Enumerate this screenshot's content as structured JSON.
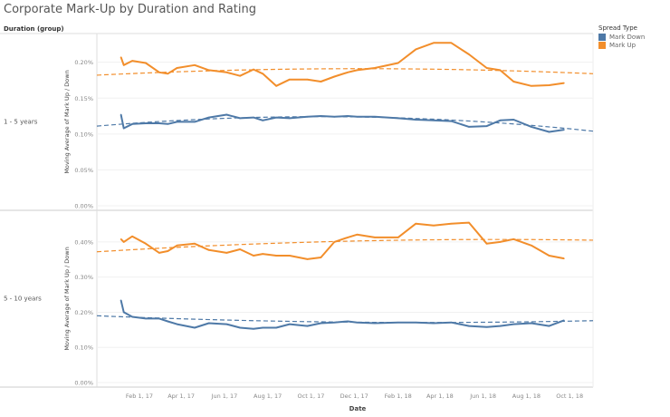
{
  "title": "Corporate Mark-Up by Duration and Rating",
  "row_header": "Duration (group)",
  "legend": {
    "title": "Spread Type",
    "items": [
      {
        "label": "Mark Down",
        "color": "#4e79a7"
      },
      {
        "label": "Mark Up",
        "color": "#f28e2b"
      }
    ]
  },
  "chart_data": {
    "type": "line",
    "xlabel": "Date",
    "ylabel": "Moving Average of Mark Up / Down",
    "x_ticks": [
      "Feb 1, 17",
      "Apr 1, 17",
      "Jun 1, 17",
      "Aug 1, 17",
      "Oct 1, 17",
      "Dec 1, 17",
      "Feb 1, 18",
      "Apr 1, 18",
      "Jun 1, 18",
      "Aug 1, 18",
      "Oct 1, 18"
    ],
    "x_tick_dates": [
      "2017-02-01",
      "2017-04-01",
      "2017-06-01",
      "2017-08-01",
      "2017-10-01",
      "2017-12-01",
      "2018-02-01",
      "2018-04-01",
      "2018-06-01",
      "2018-08-01",
      "2018-10-01"
    ],
    "xlim": [
      "2016-12-03",
      "2018-11-03"
    ],
    "grid": true,
    "legend_position": "right",
    "x": [
      "2017-01-06",
      "2017-01-10",
      "2017-01-22",
      "2017-02-10",
      "2017-03-01",
      "2017-03-13",
      "2017-03-26",
      "2017-04-20",
      "2017-05-10",
      "2017-06-04",
      "2017-06-23",
      "2017-07-12",
      "2017-07-25",
      "2017-08-13",
      "2017-09-01",
      "2017-09-26",
      "2017-10-15",
      "2017-11-03",
      "2017-11-22",
      "2017-12-05",
      "2017-12-30",
      "2018-02-01",
      "2018-02-26",
      "2018-03-23",
      "2018-04-17",
      "2018-05-12",
      "2018-06-06",
      "2018-06-25",
      "2018-07-14",
      "2018-08-08",
      "2018-09-02",
      "2018-09-23"
    ],
    "panels": [
      {
        "label": "1 - 5 years",
        "ylim": [
          0,
          0.24
        ],
        "y_ticks": [
          0,
          0.05,
          0.1,
          0.15,
          0.2
        ],
        "y_tick_labels": [
          "0.00%",
          "0.05%",
          "0.10%",
          "0.15%",
          "0.20%"
        ],
        "series": [
          {
            "name": "Mark Down",
            "color": "#4e79a7",
            "values": [
              0.127,
              0.108,
              0.114,
              0.115,
              0.115,
              0.114,
              0.117,
              0.117,
              0.123,
              0.127,
              0.122,
              0.123,
              0.119,
              0.123,
              0.122,
              0.124,
              0.125,
              0.124,
              0.125,
              0.124,
              0.124,
              0.122,
              0.12,
              0.119,
              0.118,
              0.11,
              0.111,
              0.119,
              0.12,
              0.11,
              0.103,
              0.106
            ],
            "trend": [
              0.111,
              0.124,
              0.104
            ]
          },
          {
            "name": "Mark Up",
            "color": "#f28e2b",
            "values": [
              0.207,
              0.196,
              0.202,
              0.199,
              0.186,
              0.184,
              0.192,
              0.196,
              0.189,
              0.186,
              0.181,
              0.19,
              0.184,
              0.167,
              0.176,
              0.176,
              0.173,
              0.18,
              0.186,
              0.189,
              0.192,
              0.199,
              0.218,
              0.227,
              0.227,
              0.211,
              0.192,
              0.189,
              0.173,
              0.167,
              0.168,
              0.171
            ],
            "trend": [
              0.182,
              0.191,
              0.184
            ]
          }
        ]
      },
      {
        "label": "5 - 10 years",
        "ylim": [
          0,
          0.49
        ],
        "y_ticks": [
          0,
          0.1,
          0.2,
          0.3,
          0.4
        ],
        "y_tick_labels": [
          "0.00%",
          "0.10%",
          "0.20%",
          "0.30%",
          "0.40%"
        ],
        "series": [
          {
            "name": "Mark Down",
            "color": "#4e79a7",
            "values": [
              0.234,
              0.2,
              0.187,
              0.182,
              0.182,
              0.174,
              0.166,
              0.156,
              0.169,
              0.166,
              0.156,
              0.153,
              0.156,
              0.156,
              0.166,
              0.161,
              0.169,
              0.171,
              0.174,
              0.171,
              0.169,
              0.171,
              0.171,
              0.169,
              0.171,
              0.161,
              0.158,
              0.161,
              0.166,
              0.169,
              0.161,
              0.177
            ],
            "trend": [
              0.19,
              0.172,
              0.176
            ]
          },
          {
            "name": "Mark Up",
            "color": "#f28e2b",
            "values": [
              0.408,
              0.4,
              0.416,
              0.395,
              0.369,
              0.374,
              0.39,
              0.395,
              0.377,
              0.369,
              0.379,
              0.361,
              0.366,
              0.361,
              0.361,
              0.351,
              0.356,
              0.4,
              0.413,
              0.421,
              0.413,
              0.413,
              0.452,
              0.447,
              0.452,
              0.455,
              0.395,
              0.4,
              0.408,
              0.39,
              0.361,
              0.353
            ],
            "trend": [
              0.372,
              0.402,
              0.405
            ]
          }
        ]
      }
    ]
  }
}
